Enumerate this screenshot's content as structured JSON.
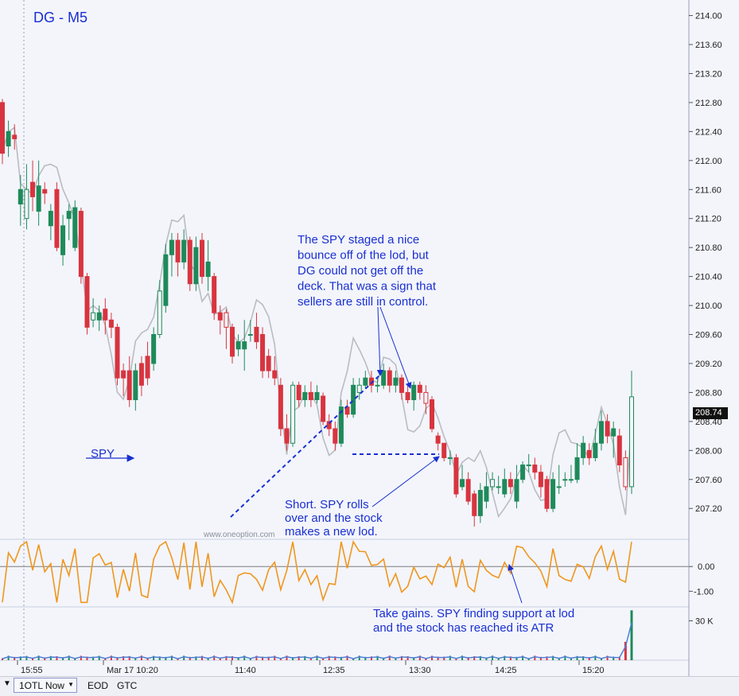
{
  "title": "DG - M5",
  "price_flag": "208.74",
  "toolbar": {
    "arrow_icon": "triangle-down",
    "dropdown_label": "1OTL Now",
    "eod_label": "EOD",
    "gtc_label": "GTC"
  },
  "watermark": "www.oneoption.com",
  "colors": {
    "up": "#1e8a5a",
    "down": "#d8343f",
    "spy": "#b9bcc2",
    "oscillator": "#f0961e",
    "volume": "#4f7fd6",
    "annotation": "#1a2fd0"
  },
  "chart_data": {
    "type": "candlestick",
    "title": "DG - M5",
    "price_axis": {
      "range": [
        206.95,
        214.05
      ],
      "ticks": [
        "214.00",
        "213.60",
        "213.20",
        "212.80",
        "212.40",
        "212.00",
        "211.60",
        "211.20",
        "210.80",
        "210.40",
        "210.00",
        "209.60",
        "209.20",
        "208.80",
        "208.40",
        "208.00",
        "207.60",
        "207.20"
      ]
    },
    "time_axis_labels": [
      "15:55",
      "Mar 17 10:20",
      "11:40",
      "12:35",
      "13:30",
      "14:25",
      "15:20"
    ],
    "oscillator_axis": {
      "range": [
        -1.6,
        1.1
      ],
      "ticks": [
        "0.00",
        "-1.00"
      ]
    },
    "volume_axis": {
      "range": [
        0,
        40
      ],
      "ticks": [
        "30 K"
      ]
    },
    "last_price": 208.74,
    "candles": [
      [
        212.8,
        212.1,
        212.85,
        211.95
      ],
      [
        212.2,
        212.4,
        212.55,
        212.05
      ],
      [
        212.35,
        212.3,
        212.5,
        212.15
      ],
      [
        211.4,
        211.6,
        211.8,
        211.1
      ],
      [
        211.2,
        211.6,
        211.95,
        211.05
      ],
      [
        211.7,
        211.5,
        212.0,
        211.3
      ],
      [
        211.3,
        211.65,
        212.0,
        211.1
      ],
      [
        211.6,
        211.55,
        211.7,
        211.4
      ],
      [
        211.1,
        211.3,
        211.4,
        210.9
      ],
      [
        211.6,
        210.8,
        211.7,
        210.75
      ],
      [
        210.7,
        211.1,
        211.25,
        210.55
      ],
      [
        211.2,
        211.3,
        211.4,
        210.9
      ],
      [
        210.8,
        211.35,
        211.45,
        210.75
      ],
      [
        211.3,
        210.4,
        211.35,
        210.3
      ],
      [
        210.4,
        209.7,
        210.45,
        209.6
      ],
      [
        209.8,
        209.9,
        210.1,
        209.7
      ],
      [
        209.8,
        209.9,
        210.0,
        209.65
      ],
      [
        209.95,
        209.8,
        210.1,
        209.6
      ],
      [
        209.8,
        209.7,
        209.9,
        209.55
      ],
      [
        209.7,
        209.0,
        209.75,
        208.9
      ],
      [
        209.1,
        209.0,
        209.2,
        208.75
      ],
      [
        209.1,
        208.7,
        209.3,
        208.6
      ],
      [
        208.7,
        209.1,
        209.2,
        208.55
      ],
      [
        209.2,
        208.9,
        209.3,
        208.75
      ],
      [
        209.3,
        209.0,
        209.5,
        208.9
      ],
      [
        209.2,
        209.6,
        209.7,
        209.1
      ],
      [
        209.6,
        210.2,
        210.35,
        209.55
      ],
      [
        210.0,
        210.7,
        210.85,
        209.9
      ],
      [
        210.7,
        210.9,
        211.0,
        210.4
      ],
      [
        210.9,
        210.6,
        211.0,
        210.4
      ],
      [
        210.6,
        210.9,
        211.05,
        210.5
      ],
      [
        210.9,
        210.3,
        210.95,
        210.2
      ],
      [
        210.3,
        210.8,
        210.95,
        210.2
      ],
      [
        210.9,
        210.4,
        211.0,
        210.3
      ],
      [
        210.4,
        210.6,
        210.9,
        210.2
      ],
      [
        210.4,
        209.9,
        210.45,
        209.8
      ],
      [
        209.9,
        209.8,
        210.0,
        209.6
      ],
      [
        209.9,
        209.7,
        209.95,
        209.4
      ],
      [
        209.7,
        209.3,
        209.75,
        209.2
      ],
      [
        209.4,
        209.5,
        209.6,
        209.3
      ],
      [
        209.4,
        209.5,
        209.8,
        209.1
      ],
      [
        209.6,
        209.6,
        209.8,
        209.5
      ],
      [
        209.7,
        209.5,
        209.9,
        209.4
      ],
      [
        209.6,
        209.1,
        209.7,
        209.0
      ],
      [
        209.3,
        209.1,
        209.4,
        209.0
      ],
      [
        209.1,
        209.0,
        209.3,
        208.9
      ],
      [
        208.9,
        208.3,
        209.0,
        208.2
      ],
      [
        208.3,
        208.1,
        208.5,
        208.0
      ],
      [
        208.1,
        208.9,
        208.95,
        208.05
      ],
      [
        208.9,
        208.7,
        208.95,
        208.6
      ],
      [
        208.7,
        208.8,
        208.9,
        208.6
      ],
      [
        208.8,
        208.7,
        208.95,
        208.6
      ],
      [
        208.7,
        208.8,
        208.9,
        208.65
      ],
      [
        208.75,
        208.4,
        208.8,
        208.35
      ],
      [
        208.4,
        208.3,
        208.5,
        208.2
      ],
      [
        208.3,
        208.1,
        208.4,
        208.0
      ],
      [
        208.1,
        208.6,
        208.7,
        208.05
      ],
      [
        208.6,
        208.5,
        208.7,
        208.45
      ],
      [
        208.5,
        208.9,
        209.0,
        208.45
      ],
      [
        208.8,
        208.9,
        209.0,
        208.7
      ],
      [
        208.9,
        209.0,
        209.1,
        208.85
      ],
      [
        209.0,
        208.9,
        209.1,
        208.8
      ],
      [
        208.9,
        208.9,
        209.0,
        208.8
      ],
      [
        208.9,
        209.1,
        209.2,
        208.85
      ],
      [
        209.1,
        208.9,
        209.15,
        208.8
      ],
      [
        208.9,
        209.0,
        209.1,
        208.8
      ],
      [
        209.0,
        208.8,
        209.05,
        208.7
      ],
      [
        208.8,
        208.7,
        208.9,
        208.65
      ],
      [
        208.7,
        208.9,
        208.95,
        208.55
      ],
      [
        208.9,
        208.8,
        208.95,
        208.7
      ],
      [
        208.8,
        208.65,
        208.9,
        208.5
      ],
      [
        208.7,
        208.3,
        208.75,
        208.25
      ],
      [
        208.2,
        208.1,
        208.25,
        208.0
      ],
      [
        208.1,
        207.9,
        208.1,
        207.85
      ],
      [
        207.9,
        207.9,
        208.0,
        207.8
      ],
      [
        207.9,
        207.4,
        207.95,
        207.35
      ],
      [
        207.5,
        207.6,
        207.8,
        207.45
      ],
      [
        207.6,
        207.3,
        207.7,
        207.25
      ],
      [
        207.4,
        207.1,
        207.45,
        206.95
      ],
      [
        207.1,
        207.45,
        207.55,
        207.0
      ],
      [
        207.3,
        207.5,
        207.7,
        207.2
      ],
      [
        207.5,
        207.6,
        207.7,
        207.45
      ],
      [
        207.5,
        207.5,
        207.65,
        207.4
      ],
      [
        207.4,
        207.6,
        207.75,
        207.35
      ],
      [
        207.6,
        207.5,
        207.7,
        207.4
      ],
      [
        207.3,
        207.6,
        207.8,
        207.2
      ],
      [
        207.6,
        207.8,
        207.85,
        207.55
      ],
      [
        207.8,
        207.8,
        207.95,
        207.7
      ],
      [
        207.8,
        207.7,
        207.9,
        207.6
      ],
      [
        207.7,
        207.5,
        207.8,
        207.35
      ],
      [
        207.6,
        207.2,
        207.65,
        207.15
      ],
      [
        207.2,
        207.6,
        207.7,
        207.15
      ],
      [
        207.5,
        207.5,
        207.8,
        207.4
      ],
      [
        207.6,
        207.6,
        207.7,
        207.5
      ],
      [
        207.6,
        207.6,
        207.8,
        207.55
      ],
      [
        207.6,
        207.9,
        208.1,
        207.55
      ],
      [
        207.9,
        208.1,
        208.2,
        207.8
      ],
      [
        208.0,
        207.9,
        208.1,
        207.8
      ],
      [
        207.9,
        208.1,
        208.3,
        207.85
      ],
      [
        208.1,
        208.4,
        208.55,
        208.0
      ],
      [
        208.4,
        208.2,
        208.5,
        208.1
      ],
      [
        208.2,
        208.3,
        208.4,
        207.9
      ],
      [
        208.2,
        207.8,
        208.3,
        207.7
      ],
      [
        207.9,
        207.5,
        208.0,
        207.45
      ],
      [
        207.5,
        208.74,
        209.1,
        207.4
      ]
    ],
    "spy_overlay_series": "SPY",
    "annotations": [
      "The SPY staged a nice\nbounce off of the lod, but\nDG could not get off the\ndeck. That was a sign that\nsellers are still in control.",
      "SPY",
      "Short. SPY rolls\nover and the stock\nmakes a new lod.",
      "Take gains. SPY finding support at lod\nand the stock has reached its ATR"
    ]
  }
}
